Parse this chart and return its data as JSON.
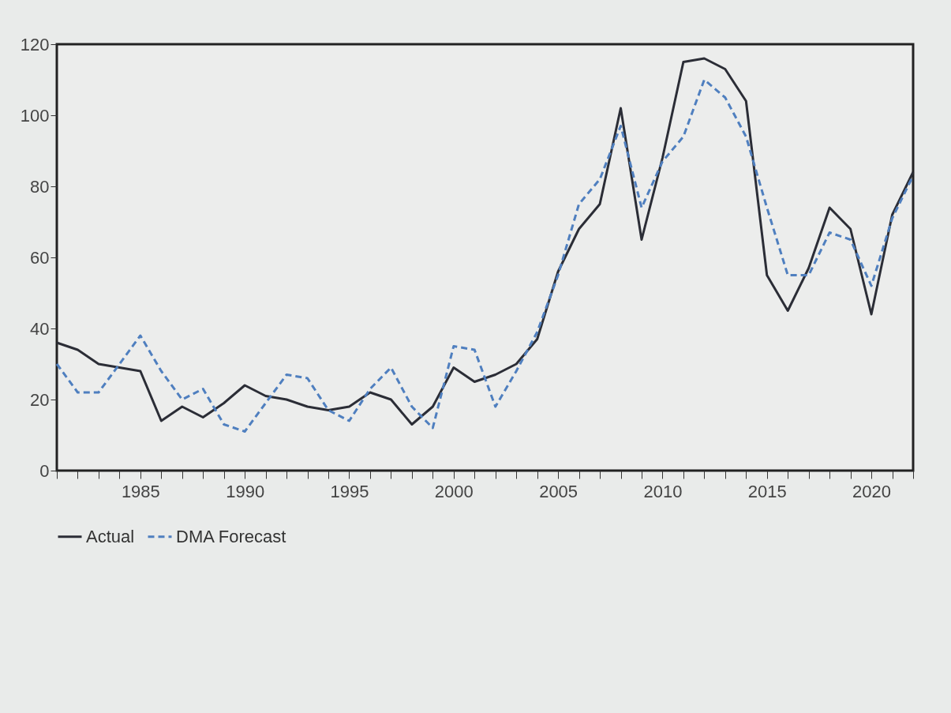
{
  "chart_data": {
    "type": "line",
    "x": [
      1981,
      1982,
      1983,
      1984,
      1985,
      1986,
      1987,
      1988,
      1989,
      1990,
      1991,
      1992,
      1993,
      1994,
      1995,
      1996,
      1997,
      1998,
      1999,
      2000,
      2001,
      2002,
      2003,
      2004,
      2005,
      2006,
      2007,
      2008,
      2009,
      2010,
      2011,
      2012,
      2013,
      2014,
      2015,
      2016,
      2017,
      2018,
      2019,
      2020,
      2021,
      2022
    ],
    "series": [
      {
        "name": "Actual",
        "color": "#2b2d36",
        "line_style": "solid",
        "values": [
          36,
          34,
          30,
          29,
          28,
          14,
          18,
          15,
          19,
          24,
          21,
          20,
          18,
          17,
          18,
          22,
          20,
          13,
          18,
          29,
          25,
          27,
          30,
          37,
          56,
          68,
          75,
          102,
          65,
          88,
          115,
          116,
          113,
          104,
          55,
          45,
          57,
          74,
          68,
          44,
          72,
          84
        ]
      },
      {
        "name": "DMA Forecast",
        "color": "#4f7fbf",
        "line_style": "dashed",
        "values": [
          30,
          22,
          22,
          30,
          38,
          28,
          20,
          23,
          13,
          11,
          19,
          27,
          26,
          17,
          14,
          23,
          29,
          18,
          12,
          35,
          34,
          18,
          28,
          39,
          55,
          75,
          82,
          97,
          74,
          87,
          94,
          110,
          105,
          94,
          74,
          55,
          55,
          67,
          65,
          52,
          71,
          83
        ]
      }
    ],
    "xlim": [
      1981,
      2022
    ],
    "xticks": [
      {
        "value": 1981,
        "label": null
      },
      {
        "value": 1982,
        "label": null
      },
      {
        "value": 1983,
        "label": null
      },
      {
        "value": 1984,
        "label": null
      },
      1985,
      {
        "value": 1986,
        "label": null
      },
      {
        "value": 1987,
        "label": null
      },
      {
        "value": 1988,
        "label": null
      },
      {
        "value": 1989,
        "label": null
      },
      1990,
      {
        "value": 1991,
        "label": null
      },
      {
        "value": 1992,
        "label": null
      },
      {
        "value": 1993,
        "label": null
      },
      {
        "value": 1994,
        "label": null
      },
      1995,
      {
        "value": 1996,
        "label": null
      },
      {
        "value": 1997,
        "label": null
      },
      {
        "value": 1998,
        "label": null
      },
      {
        "value": 1999,
        "label": null
      },
      2000,
      {
        "value": 2001,
        "label": null
      },
      {
        "value": 2002,
        "label": null
      },
      {
        "value": 2003,
        "label": null
      },
      {
        "value": 2004,
        "label": null
      },
      2005,
      {
        "value": 2006,
        "label": null
      },
      {
        "value": 2007,
        "label": null
      },
      {
        "value": 2008,
        "label": null
      },
      {
        "value": 2009,
        "label": null
      },
      2010,
      {
        "value": 2011,
        "label": null
      },
      {
        "value": 2012,
        "label": null
      },
      {
        "value": 2013,
        "label": null
      },
      {
        "value": 2014,
        "label": null
      },
      2015,
      {
        "value": 2016,
        "label": null
      },
      {
        "value": 2017,
        "label": null
      },
      {
        "value": 2018,
        "label": null
      },
      {
        "value": 2019,
        "label": null
      },
      2020,
      {
        "value": 2021,
        "label": null
      },
      {
        "value": 2022,
        "label": null
      }
    ],
    "ylim": [
      0,
      120
    ],
    "yticks": [
      0,
      20,
      40,
      60,
      80,
      100,
      120
    ],
    "grid": false,
    "legend": "bottom",
    "marker": "none"
  }
}
